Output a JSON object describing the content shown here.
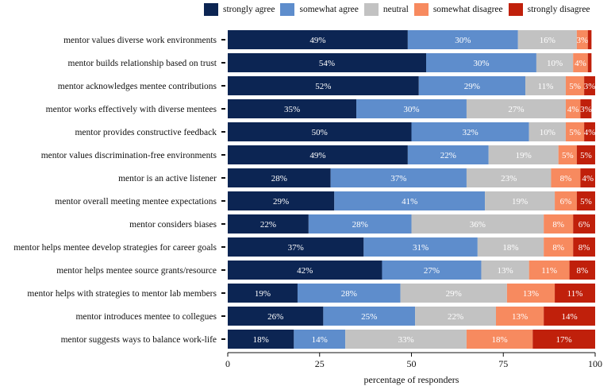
{
  "chart_data": {
    "type": "bar",
    "orientation": "horizontal",
    "stacked": true,
    "xlabel": "percentage of responders",
    "xlim": [
      0,
      100
    ],
    "xticks": [
      0,
      25,
      50,
      75,
      100
    ],
    "legend_position": "top",
    "categories": [
      "mentor values diverse work environments",
      "mentor builds relationship based on trust",
      "mentor acknowledges mentee contributions",
      "mentor works effectively with diverse mentees",
      "mentor provides constructive feedback",
      "mentor values discrimination-free environments",
      "mentor is an active listener",
      "mentor overall meeting mentee expectations",
      "mentor considers biases",
      "mentor helps mentee develop strategies for career goals",
      "mentor helps mentee source grants/resource",
      "mentor helps with strategies to mentor lab members",
      "mentor introduces mentee to collegues",
      "mentor suggests ways to balance work-life"
    ],
    "series": [
      {
        "name": "strongly agree",
        "color": "#0c2553",
        "text_color": "#ffffff",
        "values": [
          49,
          54,
          52,
          35,
          50,
          49,
          28,
          29,
          22,
          37,
          42,
          19,
          26,
          18
        ]
      },
      {
        "name": "somewhat agree",
        "color": "#5e8dcc",
        "text_color": "#ffffff",
        "values": [
          30,
          30,
          29,
          30,
          32,
          22,
          37,
          41,
          28,
          31,
          27,
          28,
          25,
          14
        ]
      },
      {
        "name": "neutral",
        "color": "#c2c2c2",
        "text_color": "#ffffff",
        "values": [
          16,
          10,
          11,
          27,
          10,
          19,
          23,
          19,
          36,
          18,
          13,
          29,
          22,
          33
        ]
      },
      {
        "name": "somewhat disagree",
        "color": "#f78a5f",
        "text_color": "#ffffff",
        "values": [
          3,
          4,
          5,
          4,
          5,
          5,
          8,
          6,
          8,
          8,
          11,
          13,
          13,
          18
        ]
      },
      {
        "name": "strongly disagree",
        "color": "#c0200b",
        "text_color": "#ffffff",
        "values": [
          1,
          1,
          3,
          3,
          4,
          5,
          4,
          5,
          6,
          8,
          8,
          11,
          14,
          17
        ]
      }
    ],
    "labels": [
      [
        "49%",
        "30%",
        "16%",
        "3%",
        ""
      ],
      [
        "54%",
        "30%",
        "10%",
        "4%",
        ""
      ],
      [
        "52%",
        "29%",
        "11%",
        "5%",
        "3%"
      ],
      [
        "35%",
        "30%",
        "27%",
        "4%",
        "3%"
      ],
      [
        "50%",
        "32%",
        "10%",
        "5%",
        "4%"
      ],
      [
        "49%",
        "22%",
        "19%",
        "5%",
        "5%"
      ],
      [
        "28%",
        "37%",
        "23%",
        "8%",
        "4%"
      ],
      [
        "29%",
        "41%",
        "19%",
        "6%",
        "5%"
      ],
      [
        "22%",
        "28%",
        "36%",
        "8%",
        "6%"
      ],
      [
        "37%",
        "31%",
        "18%",
        "8%",
        "8%"
      ],
      [
        "42%",
        "27%",
        "13%",
        "11%",
        "8%"
      ],
      [
        "19%",
        "28%",
        "29%",
        "13%",
        "11%"
      ],
      [
        "26%",
        "25%",
        "22%",
        "13%",
        "14%"
      ],
      [
        "18%",
        "14%",
        "33%",
        "18%",
        "17%"
      ]
    ]
  }
}
